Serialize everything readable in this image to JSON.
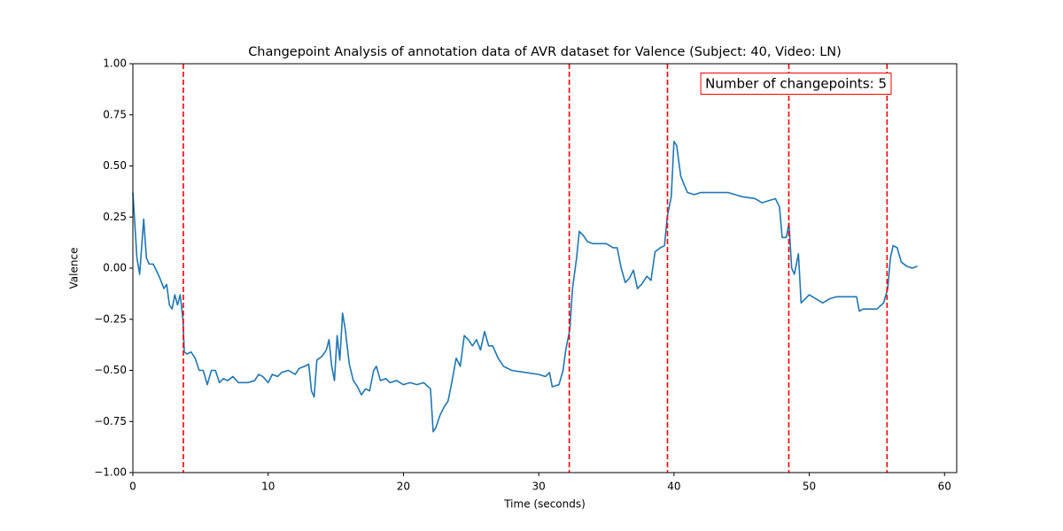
{
  "chart_data": {
    "type": "line",
    "title": "Changepoint Analysis of annotation data of AVR dataset for Valence (Subject: 40, Video: LN)",
    "x_label": "Time (seconds)",
    "y_label": "Valence",
    "annotation": "Number of changepoints: 5",
    "color": "#1f77b4",
    "changepoint_color": "red",
    "changepoints": [
      3.73,
      32.26,
      39.52,
      48.49,
      55.75
    ],
    "xlim": [
      0,
      60.9
    ],
    "ylim": [
      -1,
      1
    ],
    "xticks": [
      0,
      10,
      20,
      30,
      40,
      50,
      60
    ],
    "yticks": [
      {
        "value": -1,
        "label": "−1.00"
      },
      {
        "value": -0.75,
        "label": "−0.75"
      },
      {
        "value": -0.5,
        "label": "−0.50"
      },
      {
        "value": -0.25,
        "label": "−0.25"
      },
      {
        "value": 0,
        "label": "0.00"
      },
      {
        "value": 0.25,
        "label": "0.25"
      },
      {
        "value": 0.5,
        "label": "0.50"
      },
      {
        "value": 0.75,
        "label": "0.75"
      },
      {
        "value": 1,
        "label": "1.00"
      }
    ],
    "x": [
      0,
      0.3,
      0.5,
      0.7,
      0.8,
      1.0,
      1.2,
      1.5,
      1.8,
      2.0,
      2.3,
      2.5,
      2.7,
      2.9,
      3.1,
      3.3,
      3.5,
      3.7,
      3.8,
      4.0,
      4.3,
      4.6,
      4.9,
      5.2,
      5.5,
      5.8,
      6.1,
      6.4,
      6.7,
      7.0,
      7.4,
      7.8,
      8.5,
      9.0,
      9.3,
      9.6,
      10.0,
      10.3,
      10.7,
      11.0,
      11.5,
      12.0,
      12.3,
      12.7,
      13.0,
      13.2,
      13.4,
      13.6,
      14.0,
      14.3,
      14.5,
      14.7,
      14.9,
      15.1,
      15.3,
      15.5,
      15.7,
      16.0,
      16.3,
      16.6,
      16.9,
      17.2,
      17.5,
      17.8,
      18.0,
      18.3,
      18.7,
      19.0,
      19.5,
      20.0,
      20.5,
      21.0,
      21.5,
      22.0,
      22.2,
      22.4,
      22.7,
      23.0,
      23.3,
      23.6,
      23.9,
      24.2,
      24.5,
      24.8,
      25.1,
      25.4,
      25.7,
      26.0,
      26.3,
      26.6,
      27.0,
      27.4,
      28.0,
      29.0,
      30.0,
      30.5,
      30.8,
      31.0,
      31.5,
      31.8,
      32.0,
      32.3,
      32.5,
      32.8,
      33.0,
      33.3,
      33.6,
      34.0,
      35.0,
      35.5,
      35.8,
      36.1,
      36.4,
      36.7,
      37.0,
      37.3,
      37.6,
      38.0,
      38.3,
      38.6,
      39.0,
      39.3,
      39.5,
      39.8,
      40.0,
      40.2,
      40.5,
      40.8,
      41.0,
      41.5,
      42.0,
      43.0,
      44.0,
      45.0,
      46.0,
      46.5,
      47.0,
      47.5,
      47.8,
      48.0,
      48.3,
      48.5,
      48.7,
      48.9,
      49.2,
      49.4,
      49.7,
      50.0,
      50.5,
      51.0,
      51.5,
      52.0,
      53.0,
      53.5,
      53.7,
      54.0,
      54.5,
      55.0,
      55.5,
      55.8,
      56.0,
      56.2,
      56.5,
      56.8,
      57.2,
      57.6,
      58.0
    ],
    "values": [
      0.37,
      0.05,
      -0.03,
      0.15,
      0.24,
      0.05,
      0.02,
      0.02,
      -0.02,
      -0.05,
      -0.1,
      -0.08,
      -0.18,
      -0.2,
      -0.13,
      -0.18,
      -0.13,
      -0.25,
      -0.41,
      -0.42,
      -0.41,
      -0.44,
      -0.5,
      -0.5,
      -0.57,
      -0.5,
      -0.5,
      -0.56,
      -0.54,
      -0.55,
      -0.53,
      -0.56,
      -0.56,
      -0.55,
      -0.52,
      -0.53,
      -0.56,
      -0.52,
      -0.53,
      -0.51,
      -0.5,
      -0.52,
      -0.49,
      -0.48,
      -0.47,
      -0.6,
      -0.63,
      -0.45,
      -0.43,
      -0.4,
      -0.35,
      -0.48,
      -0.55,
      -0.33,
      -0.45,
      -0.22,
      -0.3,
      -0.47,
      -0.55,
      -0.58,
      -0.62,
      -0.59,
      -0.6,
      -0.5,
      -0.48,
      -0.55,
      -0.54,
      -0.56,
      -0.55,
      -0.57,
      -0.56,
      -0.57,
      -0.56,
      -0.59,
      -0.8,
      -0.78,
      -0.72,
      -0.68,
      -0.65,
      -0.55,
      -0.44,
      -0.48,
      -0.33,
      -0.35,
      -0.38,
      -0.35,
      -0.4,
      -0.31,
      -0.38,
      -0.38,
      -0.44,
      -0.48,
      -0.5,
      -0.51,
      -0.52,
      -0.53,
      -0.51,
      -0.58,
      -0.57,
      -0.5,
      -0.4,
      -0.3,
      -0.1,
      0.05,
      0.18,
      0.16,
      0.13,
      0.12,
      0.12,
      0.1,
      0.1,
      0.0,
      -0.07,
      -0.05,
      -0.01,
      -0.1,
      -0.08,
      -0.04,
      -0.06,
      0.08,
      0.1,
      0.11,
      0.25,
      0.35,
      0.62,
      0.6,
      0.45,
      0.4,
      0.37,
      0.36,
      0.37,
      0.37,
      0.37,
      0.35,
      0.34,
      0.32,
      0.33,
      0.34,
      0.3,
      0.15,
      0.15,
      0.22,
      0.0,
      -0.03,
      0.07,
      -0.17,
      -0.15,
      -0.13,
      -0.15,
      -0.17,
      -0.15,
      -0.14,
      -0.14,
      -0.14,
      -0.21,
      -0.2,
      -0.2,
      -0.2,
      -0.17,
      -0.1,
      0.05,
      0.11,
      0.1,
      0.03,
      0.01,
      0.0,
      0.01
    ]
  }
}
